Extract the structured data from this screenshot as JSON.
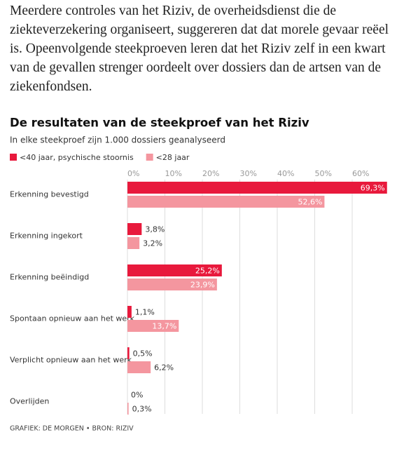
{
  "article": {
    "text": "Meerdere controles van het Riziv, de overheidsdienst die de ziekteverzekering organiseert, suggereren dat dat morele gevaar reëel is. Opeenvolgende steekproeven leren dat het Riziv zelf in een kwart van de gevallen strenger oordeelt over dossiers dan de artsen van de ziekenfondsen."
  },
  "chart_data": {
    "type": "hbar",
    "title": "De resultaten van de steekproef van het Riziv",
    "subtitle": "In elke steekproef zijn 1.000 dossiers geanalyseerd",
    "source": "GRAFIEK: DE MORGEN • BRON: RIZIV",
    "categories": [
      "Erkenning bevestigd",
      "Erkenning ingekort",
      "Erkenning beëindigd",
      "Spontaan opnieuw aan het werk",
      "Verplicht opnieuw aan het werk",
      "Overlijden"
    ],
    "series": [
      {
        "name": "<40 jaar, psychische stoornis",
        "color": "#e8193c",
        "values": [
          69.3,
          3.8,
          25.2,
          1.1,
          0.5,
          0
        ],
        "value_labels": [
          "69,3%",
          "3,8%",
          "25,2%",
          "1,1%",
          "0,5%",
          "0%"
        ]
      },
      {
        "name": "<28 jaar",
        "color": "#f4969f",
        "values": [
          52.6,
          3.2,
          23.9,
          13.7,
          6.2,
          0.3
        ],
        "value_labels": [
          "52,6%",
          "3,2%",
          "23,9%",
          "13,7%",
          "6,2%",
          "0,3%"
        ]
      }
    ],
    "xlim": [
      0,
      70
    ],
    "xticks": [
      {
        "value": 0,
        "label": "0%"
      },
      {
        "value": 10,
        "label": "10%"
      },
      {
        "value": 20,
        "label": "20%"
      },
      {
        "value": 30,
        "label": "30%"
      },
      {
        "value": 40,
        "label": "40%"
      },
      {
        "value": 50,
        "label": "50%"
      },
      {
        "value": 60,
        "label": "60%"
      }
    ],
    "grid": true
  }
}
